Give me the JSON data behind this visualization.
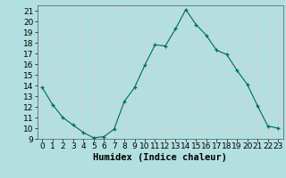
{
  "x": [
    0,
    1,
    2,
    3,
    4,
    5,
    6,
    7,
    8,
    9,
    10,
    11,
    12,
    13,
    14,
    15,
    16,
    17,
    18,
    19,
    20,
    21,
    22,
    23
  ],
  "y": [
    13.8,
    12.2,
    11.0,
    10.3,
    9.6,
    9.1,
    9.2,
    9.9,
    12.5,
    13.8,
    15.9,
    17.8,
    17.7,
    19.3,
    21.1,
    19.7,
    18.7,
    17.3,
    16.9,
    15.4,
    14.1,
    12.1,
    10.2,
    10.0
  ],
  "xlabel": "Humidex (Indice chaleur)",
  "xlim": [
    -0.5,
    23.5
  ],
  "ylim": [
    9,
    21.5
  ],
  "yticks": [
    9,
    10,
    11,
    12,
    13,
    14,
    15,
    16,
    17,
    18,
    19,
    20,
    21
  ],
  "xticks": [
    0,
    1,
    2,
    3,
    4,
    5,
    6,
    7,
    8,
    9,
    10,
    11,
    12,
    13,
    14,
    15,
    16,
    17,
    18,
    19,
    20,
    21,
    22,
    23
  ],
  "line_color": "#006666",
  "bg_color": "#b2e0e0",
  "grid_color": "#d0d0d0",
  "label_fontsize": 7.5,
  "tick_fontsize": 6.5
}
